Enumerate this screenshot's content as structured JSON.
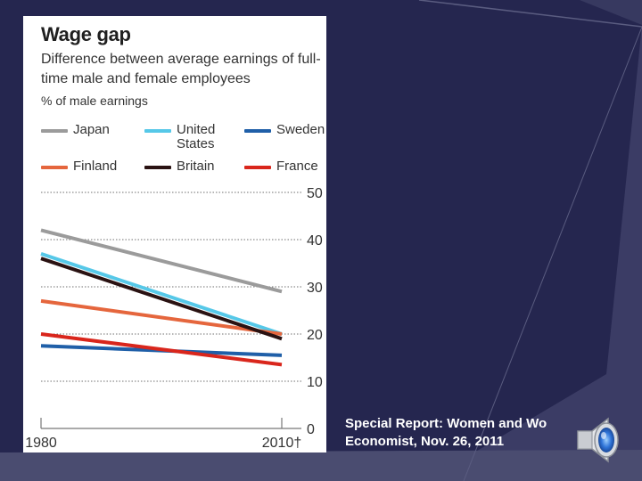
{
  "chart_data": {
    "type": "line",
    "title": "Wage gap",
    "subtitle": "Difference between average earnings of full-time male and female employees",
    "units": "% of male earnings",
    "x_tick_labels": [
      "1980",
      "2010†"
    ],
    "x": [
      1980,
      2010
    ],
    "ylim": [
      0,
      50
    ],
    "y_ticks": [
      0,
      10,
      20,
      30,
      40,
      50
    ],
    "grid": true,
    "legend_position": "top",
    "series": [
      {
        "name": "Japan",
        "label": "Japan",
        "color": "#9b9b9b",
        "values": [
          42,
          29
        ]
      },
      {
        "name": "United States",
        "label": "United\nStates",
        "color": "#56c8e8",
        "values": [
          37,
          20
        ]
      },
      {
        "name": "Sweden",
        "label": "Sweden",
        "color": "#1f5fa8",
        "values": [
          17.5,
          15.5
        ]
      },
      {
        "name": "Finland",
        "label": "Finland",
        "color": "#e5663d",
        "values": [
          27,
          20
        ]
      },
      {
        "name": "Britain",
        "label": "Britain",
        "color": "#2a1212",
        "values": [
          36,
          19
        ]
      },
      {
        "name": "France",
        "label": "France",
        "color": "#d9261c",
        "values": [
          20,
          13.5
        ]
      }
    ]
  },
  "caption": {
    "line1": "Special Report: Women and Wo",
    "line2": "Economist, Nov. 26, 2011"
  },
  "icons": {
    "speaker": "speaker-icon"
  }
}
